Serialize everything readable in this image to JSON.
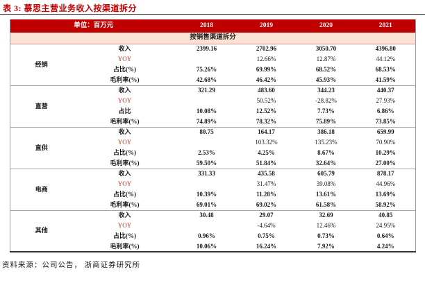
{
  "title": "表 3:  慕思主营业务收入按渠道拆分",
  "table": {
    "unit_label": "单位：百万元",
    "years": [
      "2018",
      "2019",
      "2020",
      "2021"
    ],
    "section_header": "按销售渠道拆分",
    "groups": [
      {
        "name": "经销",
        "rows": [
          {
            "label": "收入",
            "style": "bold",
            "values": [
              "2399.16",
              "2702.96",
              "3050.70",
              "4396.80"
            ]
          },
          {
            "label": "YOY",
            "style": "yoy",
            "values": [
              "",
              "12.66%",
              "12.87%",
              "44.12%"
            ]
          },
          {
            "label": "占比(%)",
            "style": "bold",
            "values": [
              "75.26%",
              "69.99%",
              "68.52%",
              "68.53%"
            ]
          },
          {
            "label": "毛利率(%)",
            "style": "bold",
            "values": [
              "42.68%",
              "46.42%",
              "45.93%",
              "41.59%"
            ]
          }
        ]
      },
      {
        "name": "直营",
        "rows": [
          {
            "label": "收入",
            "style": "bold",
            "values": [
              "321.29",
              "483.60",
              "344.23",
              "440.37"
            ]
          },
          {
            "label": "YOY",
            "style": "yoy",
            "values": [
              "",
              "50.52%",
              "-28.82%",
              "27.93%"
            ]
          },
          {
            "label": "占比",
            "style": "bold",
            "values": [
              "10.08%",
              "12.52%",
              "7.73%",
              "6.86%"
            ]
          },
          {
            "label": "毛利率(%)",
            "style": "bold",
            "values": [
              "74.89%",
              "78.32%",
              "75.89%",
              "73.85%"
            ]
          }
        ]
      },
      {
        "name": "直供",
        "rows": [
          {
            "label": "收入",
            "style": "bold",
            "values": [
              "80.75",
              "164.17",
              "386.18",
              "659.99"
            ]
          },
          {
            "label": "YOY",
            "style": "yoy",
            "values": [
              "",
              "103.32%",
              "135.23%",
              "70.90%"
            ]
          },
          {
            "label": "占比(%)",
            "style": "bold",
            "values": [
              "2.53%",
              "4.25%",
              "8.67%",
              "10.29%"
            ]
          },
          {
            "label": "毛利率(%)",
            "style": "bold",
            "values": [
              "59.50%",
              "51.84%",
              "32.64%",
              "27.00%"
            ]
          }
        ]
      },
      {
        "name": "电商",
        "rows": [
          {
            "label": "收入",
            "style": "bold",
            "values": [
              "331.33",
              "435.58",
              "605.79",
              "878.17"
            ]
          },
          {
            "label": "YOY",
            "style": "yoy",
            "values": [
              "",
              "31.47%",
              "39.08%",
              "44.96%"
            ]
          },
          {
            "label": "占比(%)",
            "style": "bold",
            "values": [
              "10.39%",
              "11.28%",
              "13.61%",
              "13.69%"
            ]
          },
          {
            "label": "毛利率(%)",
            "style": "bold",
            "values": [
              "69.01%",
              "69.02%",
              "61.58%",
              "58.92%"
            ]
          }
        ]
      },
      {
        "name": "其他",
        "rows": [
          {
            "label": "收入",
            "style": "bold",
            "values": [
              "30.48",
              "29.07",
              "32.69",
              "40.85"
            ]
          },
          {
            "label": "YOY",
            "style": "yoy",
            "values": [
              "",
              "-4.64%",
              "12.46%",
              "24.95%"
            ]
          },
          {
            "label": "占比(%)",
            "style": "bold",
            "values": [
              "0.96%",
              "0.75%",
              "0.73%",
              "0.64%"
            ]
          },
          {
            "label": "毛利率(%)",
            "style": "bold",
            "values": [
              "10.06%",
              "16.24%",
              "7.92%",
              "4.24%"
            ]
          }
        ]
      }
    ]
  },
  "footer": "资料来源：公司公告， 浙商证券研究所",
  "colors": {
    "header_red": "#c00000",
    "subheader_pink": "#fae3d5",
    "title_red": "#c00000",
    "yoy_red": "#c92a20",
    "rule_dark": "#262626",
    "separator_gray": "#a6a6a6"
  }
}
